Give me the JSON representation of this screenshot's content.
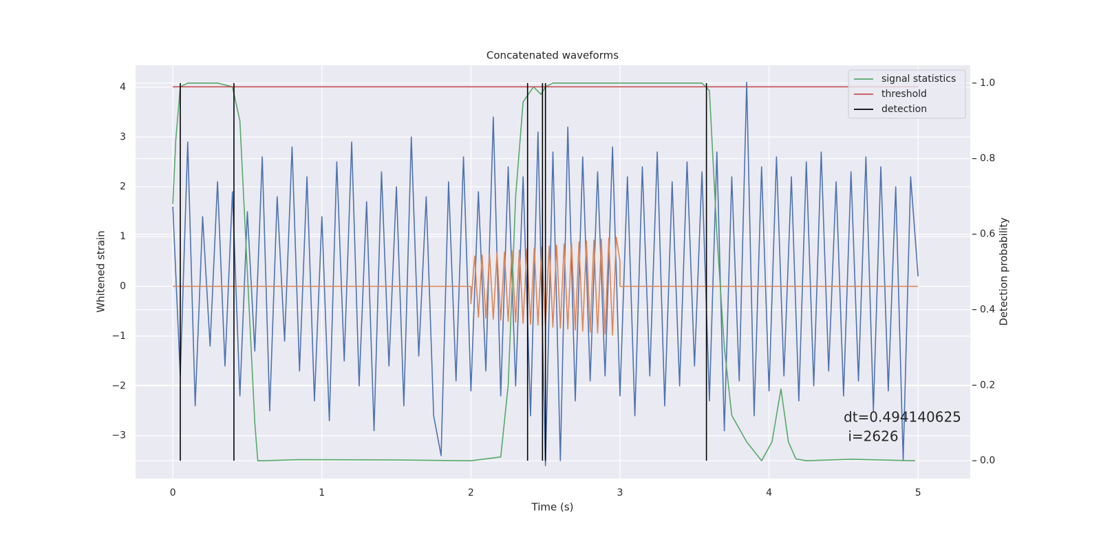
{
  "chart_data": {
    "type": "line",
    "title": "Concatenated waveforms",
    "xlabel": "Time (s)",
    "ylabel": "Whitened strain",
    "y2label": "Detection probability",
    "annotation": [
      "dt=0.494140625",
      " i=2626"
    ],
    "xlim": [
      -0.25,
      5.35
    ],
    "ylim": [
      -3.86,
      4.44
    ],
    "y2lim": [
      -0.047,
      1.047
    ],
    "xticks": [
      0,
      1,
      2,
      3,
      4,
      5
    ],
    "yticks": [
      {
        "value": -3,
        "label": "−3"
      },
      {
        "value": -2,
        "label": "−2"
      },
      {
        "value": -1,
        "label": "−1"
      },
      0,
      1,
      2,
      3,
      4
    ],
    "y2ticks": [
      {
        "value": 0,
        "label": "0.0"
      },
      0.2,
      0.4,
      0.6,
      0.8,
      {
        "value": 1,
        "label": "1.0"
      }
    ],
    "grid": true,
    "legend": "upper right",
    "series": [
      {
        "color": "#4c72b0",
        "axis": "y",
        "x": [
          0,
          0.05,
          0.1,
          0.15,
          0.2,
          0.25,
          0.3,
          0.35,
          0.4,
          0.45,
          0.5,
          0.55,
          0.6,
          0.65,
          0.7,
          0.75,
          0.8,
          0.85,
          0.9,
          0.95,
          1.0,
          1.05,
          1.1,
          1.15,
          1.2,
          1.25,
          1.3,
          1.35,
          1.4,
          1.45,
          1.5,
          1.55,
          1.6,
          1.65,
          1.7,
          1.75,
          1.8,
          1.85,
          1.9,
          1.95,
          2.0,
          2.05,
          2.1,
          2.15,
          2.2,
          2.25,
          2.3,
          2.35,
          2.4,
          2.45,
          2.5,
          2.55,
          2.6,
          2.65,
          2.7,
          2.75,
          2.8,
          2.85,
          2.9,
          2.95,
          3.0,
          3.05,
          3.1,
          3.15,
          3.2,
          3.25,
          3.3,
          3.35,
          3.4,
          3.45,
          3.5,
          3.55,
          3.6,
          3.65,
          3.7,
          3.75,
          3.8,
          3.85,
          3.9,
          3.95,
          4.0,
          4.05,
          4.1,
          4.15,
          4.2,
          4.25,
          4.3,
          4.35,
          4.4,
          4.45,
          4.5,
          4.55,
          4.6,
          4.65,
          4.7,
          4.75,
          4.8,
          4.85,
          4.9,
          4.95,
          5.0
        ],
        "values": [
          1.6,
          -1.8,
          2.9,
          -2.4,
          1.4,
          -1.2,
          2.1,
          -1.6,
          1.9,
          -2.2,
          1.5,
          -1.3,
          2.6,
          -2.5,
          1.8,
          -1.1,
          2.8,
          -1.7,
          2.2,
          -2.3,
          1.4,
          -2.7,
          2.5,
          -1.5,
          2.9,
          -2.0,
          1.7,
          -2.9,
          2.3,
          -1.6,
          2.0,
          -2.4,
          3.0,
          -1.4,
          1.8,
          -2.6,
          -3.4,
          2.1,
          -1.9,
          2.6,
          -2.1,
          1.9,
          -1.7,
          3.4,
          -2.2,
          2.4,
          -2.0,
          2.2,
          -2.6,
          3.1,
          -3.6,
          2.7,
          -3.5,
          3.2,
          -2.3,
          2.6,
          -1.9,
          2.3,
          -1.8,
          2.8,
          -2.2,
          2.2,
          -2.6,
          2.4,
          -1.8,
          2.7,
          -2.4,
          2.1,
          -2.0,
          2.5,
          -1.6,
          2.3,
          -2.3,
          2.7,
          -2.9,
          2.2,
          -1.9,
          4.1,
          -2.6,
          2.4,
          -2.1,
          2.6,
          -1.8,
          2.2,
          -2.3,
          2.5,
          -2.0,
          2.7,
          -1.7,
          2.1,
          -2.2,
          2.3,
          -1.9,
          2.6,
          -2.5,
          2.4,
          -2.1,
          2.0,
          -3.5,
          2.2,
          0.2
        ]
      },
      {
        "color": "#dd8452",
        "axis": "y",
        "x": [
          0,
          2.0,
          2.0,
          2.025,
          2.05,
          2.075,
          2.1,
          2.125,
          2.15,
          2.175,
          2.2,
          2.225,
          2.25,
          2.275,
          2.3,
          2.325,
          2.35,
          2.375,
          2.4,
          2.425,
          2.45,
          2.475,
          2.5,
          2.525,
          2.55,
          2.575,
          2.6,
          2.625,
          2.65,
          2.675,
          2.7,
          2.725,
          2.75,
          2.775,
          2.8,
          2.825,
          2.85,
          2.875,
          2.9,
          2.925,
          2.95,
          2.975,
          3.0,
          3.0,
          5.0
        ],
        "values": [
          0,
          0,
          -0.35,
          0.61,
          -0.62,
          0.63,
          -0.64,
          0.65,
          -0.66,
          0.67,
          -0.68,
          0.69,
          -0.7,
          0.71,
          -0.72,
          0.73,
          -0.74,
          0.75,
          -0.76,
          0.77,
          -0.78,
          0.79,
          -0.8,
          0.81,
          -0.82,
          0.83,
          -0.84,
          0.85,
          -0.86,
          0.87,
          -0.88,
          0.89,
          -0.9,
          0.91,
          -0.92,
          0.93,
          -0.94,
          0.95,
          -0.96,
          0.97,
          -0.98,
          0.99,
          0.5,
          0,
          0
        ]
      },
      {
        "name": "signal statistics",
        "color": "#55a868",
        "axis": "y2",
        "x": [
          0,
          0.02,
          0.05,
          0.1,
          0.3,
          0.4,
          0.45,
          0.5,
          0.55,
          0.57,
          0.6,
          0.85,
          1.5,
          2.0,
          2.2,
          2.25,
          2.3,
          2.35,
          2.42,
          2.47,
          2.5,
          2.55,
          3.0,
          3.55,
          3.6,
          3.65,
          3.7,
          3.75,
          3.85,
          3.95,
          4.02,
          4.08,
          4.13,
          4.18,
          4.25,
          4.55,
          4.98
        ],
        "values": [
          0.68,
          0.85,
          0.99,
          1.0,
          1.0,
          0.99,
          0.9,
          0.5,
          0.1,
          0.0,
          0.0,
          0.003,
          0.002,
          0.0,
          0.01,
          0.2,
          0.7,
          0.95,
          0.99,
          0.97,
          0.99,
          1.0,
          1.0,
          1.0,
          0.98,
          0.6,
          0.3,
          0.12,
          0.05,
          0.0,
          0.05,
          0.19,
          0.05,
          0.005,
          0.0,
          0.004,
          0.0
        ]
      },
      {
        "name": "threshold",
        "color": "#c44e52",
        "axis": "y2",
        "x": [
          0,
          5
        ],
        "values": [
          0.99,
          0.99
        ]
      },
      {
        "name": "detection",
        "color": "#000000",
        "axis": "y2",
        "x": [
          0.05,
          0.05,
          0.05,
          0.41,
          0.41,
          0.41,
          2.38,
          2.38,
          2.38,
          2.48,
          2.48,
          2.48,
          2.5,
          2.5,
          2.5,
          3.58,
          3.58
        ],
        "values": [
          0,
          1,
          null,
          0,
          1,
          null,
          0,
          1,
          null,
          0,
          1,
          null,
          0,
          1,
          null,
          0,
          1
        ]
      }
    ]
  }
}
